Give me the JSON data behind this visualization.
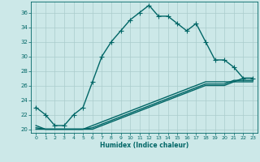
{
  "xlabel": "Humidex (Indice chaleur)",
  "background_color": "#cce8e8",
  "grid_color": "#aacccc",
  "line_color": "#006666",
  "xlim": [
    -0.5,
    23.5
  ],
  "ylim": [
    19.5,
    37.5
  ],
  "xticks": [
    0,
    1,
    2,
    3,
    4,
    5,
    6,
    7,
    8,
    9,
    10,
    11,
    12,
    13,
    14,
    15,
    16,
    17,
    18,
    19,
    20,
    21,
    22,
    23
  ],
  "yticks": [
    20,
    22,
    24,
    26,
    28,
    30,
    32,
    34,
    36
  ],
  "series": [
    {
      "x": [
        0,
        1,
        2,
        3,
        4,
        5,
        6,
        7,
        8,
        9,
        10,
        11,
        12,
        13,
        14,
        15,
        16,
        17,
        18,
        19,
        20,
        21,
        22,
        23
      ],
      "y": [
        23.0,
        22.0,
        20.5,
        20.5,
        22.0,
        23.0,
        26.5,
        30.0,
        32.0,
        33.5,
        35.0,
        36.0,
        37.0,
        35.5,
        35.5,
        34.5,
        33.5,
        34.5,
        32.0,
        29.5,
        29.5,
        28.5,
        27.0,
        27.0
      ],
      "marker": "+",
      "markersize": 4,
      "linewidth": 1.0
    },
    {
      "x": [
        0,
        1,
        2,
        3,
        4,
        5,
        6,
        7,
        8,
        9,
        10,
        11,
        12,
        13,
        14,
        15,
        16,
        17,
        18,
        19,
        20,
        21,
        22,
        23
      ],
      "y": [
        20.5,
        20.0,
        20.0,
        20.0,
        20.0,
        20.0,
        20.5,
        21.0,
        21.5,
        22.0,
        22.5,
        23.0,
        23.5,
        24.0,
        24.5,
        25.0,
        25.5,
        26.0,
        26.5,
        26.5,
        26.5,
        26.5,
        27.0,
        27.0
      ],
      "marker": null,
      "linewidth": 1.0
    },
    {
      "x": [
        0,
        1,
        2,
        3,
        4,
        5,
        6,
        7,
        8,
        9,
        10,
        11,
        12,
        13,
        14,
        15,
        16,
        17,
        18,
        19,
        20,
        21,
        22,
        23
      ],
      "y": [
        20.0,
        20.0,
        20.0,
        20.0,
        20.0,
        20.0,
        20.0,
        20.5,
        21.0,
        21.5,
        22.0,
        22.5,
        23.0,
        23.5,
        24.0,
        24.5,
        25.0,
        25.5,
        26.0,
        26.0,
        26.0,
        26.5,
        26.5,
        26.5
      ],
      "marker": null,
      "linewidth": 1.0
    },
    {
      "x": [
        0,
        1,
        2,
        3,
        4,
        5,
        6,
        7,
        8,
        9,
        10,
        11,
        12,
        13,
        14,
        15,
        16,
        17,
        18,
        19,
        20,
        21,
        22,
        23
      ],
      "y": [
        20.2,
        20.0,
        20.0,
        20.0,
        20.0,
        20.0,
        20.2,
        20.7,
        21.2,
        21.7,
        22.2,
        22.7,
        23.2,
        23.7,
        24.2,
        24.7,
        25.2,
        25.7,
        26.2,
        26.2,
        26.2,
        26.7,
        26.7,
        26.7
      ],
      "marker": null,
      "linewidth": 1.0
    }
  ]
}
